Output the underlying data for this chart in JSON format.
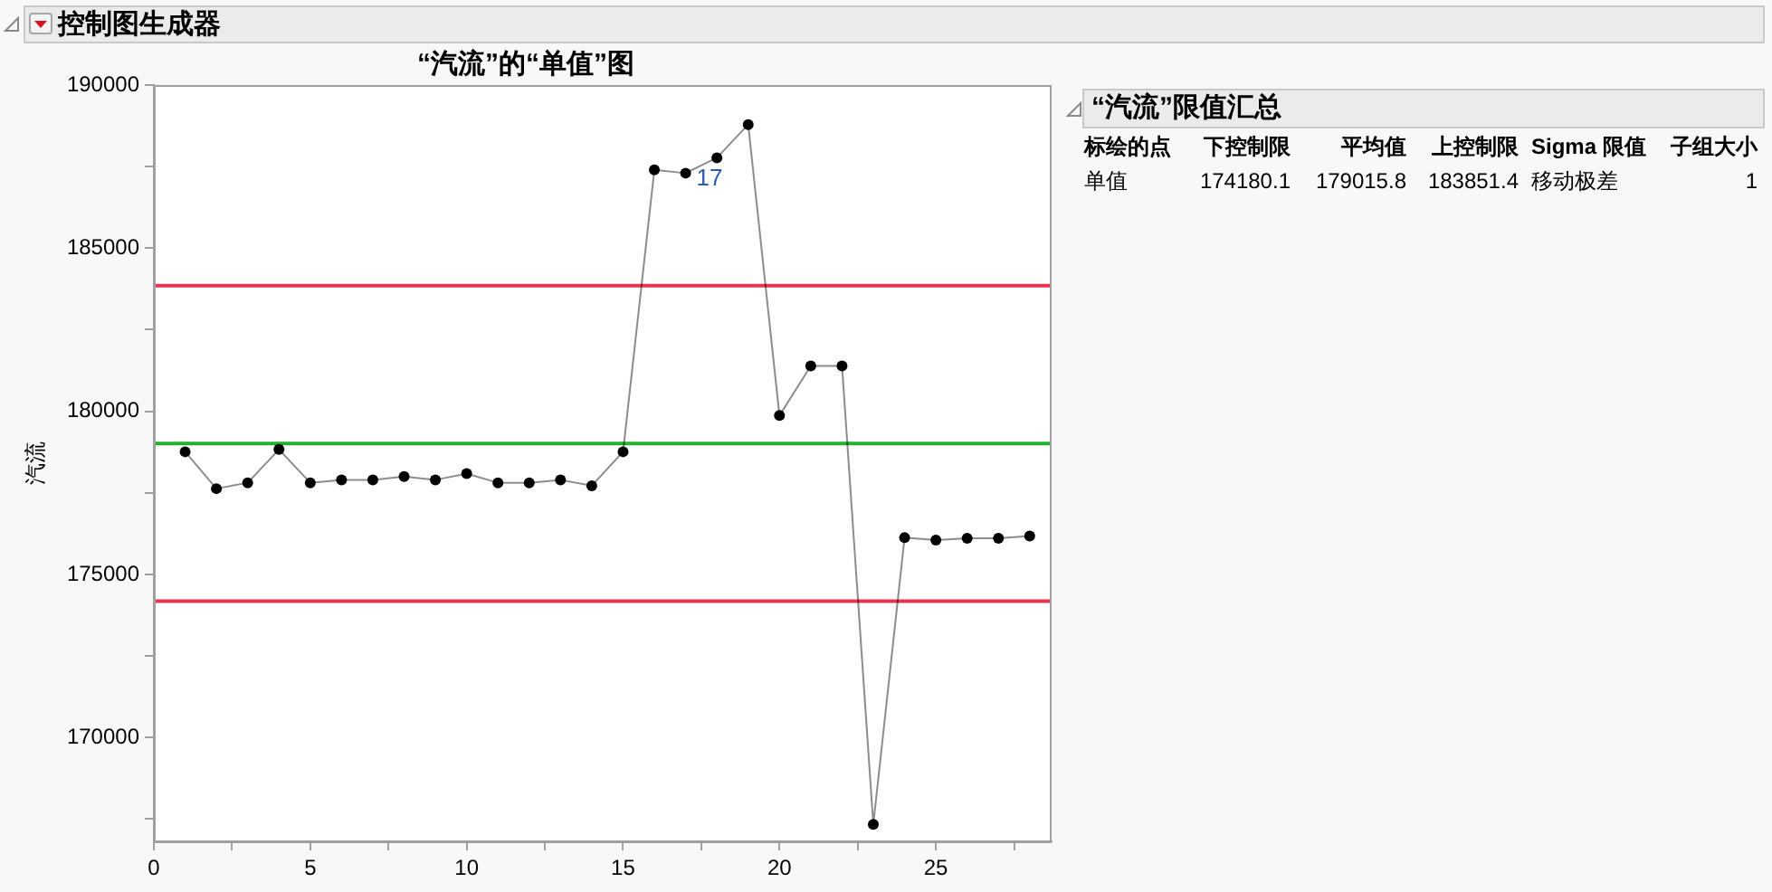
{
  "chart_data": {
    "type": "line",
    "title": "“汽流”的“单值”图",
    "ylabel": "汽流",
    "x": [
      1,
      2,
      3,
      4,
      5,
      6,
      7,
      8,
      9,
      10,
      11,
      12,
      13,
      14,
      15,
      16,
      17,
      18,
      19,
      20,
      21,
      22,
      23,
      24,
      25,
      26,
      27,
      28
    ],
    "values": [
      178760,
      177630,
      177810,
      178830,
      177810,
      177900,
      177900,
      178000,
      177900,
      178090,
      177810,
      177810,
      177900,
      177720,
      178760,
      187400,
      187300,
      187770,
      188790,
      179870,
      181390,
      181390,
      167340,
      176130,
      176050,
      176110,
      176110,
      176180
    ],
    "color": "#000000",
    "marker": "circle",
    "grid": false,
    "legend": false,
    "xlim": [
      0,
      28.7
    ],
    "xticks": [
      0,
      {
        "value": 2.5,
        "label": null
      },
      5,
      {
        "value": 7.5,
        "label": null
      },
      10,
      {
        "value": 12.5,
        "label": null
      },
      15,
      {
        "value": 17.5,
        "label": null
      },
      20,
      {
        "value": 22.5,
        "label": null
      },
      25,
      {
        "value": 27.5,
        "label": null
      }
    ],
    "ylim": [
      166820,
      190000
    ],
    "yticks": [
      {
        "value": 167500,
        "label": null
      },
      170000,
      {
        "value": 172500,
        "label": null
      },
      175000,
      {
        "value": 177500,
        "label": null
      },
      180000,
      {
        "value": 182500,
        "label": null
      },
      185000,
      {
        "value": 187500,
        "label": null
      },
      190000
    ],
    "ref_lines": [
      {
        "axis": "y",
        "value": 183851.4,
        "color": "#e8344e"
      },
      {
        "axis": "y",
        "value": 179015.8,
        "color": "#22b02e"
      },
      {
        "axis": "y",
        "value": 174180.1,
        "color": "#e8344e"
      }
    ],
    "annotations": [
      "控制图生成器",
      "“汽流”限值汇总",
      "标绘的点",
      "下控制限",
      "平均值",
      "上控制限",
      "Sigma 限值",
      "子组大小",
      "单值",
      "174180.1",
      "179015.8",
      "183851.4",
      "移动极差",
      "1",
      {
        "text": "17",
        "x": 17,
        "y": 187300
      }
    ]
  }
}
